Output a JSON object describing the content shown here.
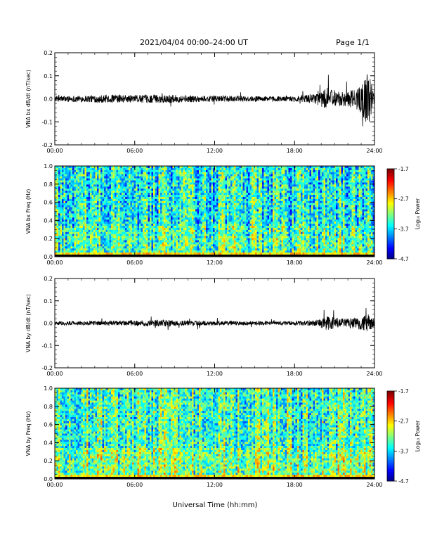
{
  "header": {
    "title": "2021/04/04  00:00–24:00 UT",
    "page": "Page 1/1"
  },
  "x_axis_label": "Universal Time (hh:mm)",
  "x_ticks": [
    "00:00",
    "06:00",
    "12:00",
    "18:00",
    "24:00"
  ],
  "colorbar": {
    "label": "Log₁₀ Power",
    "ticks": [
      "-1.7",
      "-2.7",
      "-3.7",
      "-4.7"
    ],
    "range": [
      -4.7,
      -1.7
    ]
  },
  "chart_data": [
    {
      "type": "line",
      "ylabel": "VNA bx dB/dt (nT/sec)",
      "xlim": [
        0,
        24
      ],
      "ylim": [
        -0.2,
        0.2
      ],
      "y_ticks": [
        "0.2",
        "0.1",
        "0.0",
        "-0.1",
        "-0.2"
      ],
      "series": [
        {
          "envelope_hours": [
            0,
            2,
            4,
            6,
            8,
            10,
            12,
            14,
            16,
            18,
            19.5,
            20.5,
            21.5,
            22.5,
            23,
            23.5,
            24
          ],
          "envelope_amplitude": [
            0.012,
            0.014,
            0.018,
            0.016,
            0.018,
            0.015,
            0.013,
            0.012,
            0.011,
            0.012,
            0.02,
            0.05,
            0.03,
            0.04,
            0.06,
            0.12,
            0.03
          ]
        }
      ]
    },
    {
      "type": "heatmap",
      "ylabel": "VNA bx Freq (Hz)",
      "xlim": [
        0,
        24
      ],
      "ylim": [
        0.0,
        1.0
      ],
      "y_ticks": [
        "1.0",
        "0.8",
        "0.6",
        "0.4",
        "0.2",
        "0.0"
      ]
    },
    {
      "type": "line",
      "ylabel": "VNA by dB/dt (nT/sec)",
      "xlim": [
        0,
        24
      ],
      "ylim": [
        -0.2,
        0.2
      ],
      "y_ticks": [
        "0.2",
        "0.1",
        "0.0",
        "-0.1",
        "-0.2"
      ],
      "series": [
        {
          "envelope_hours": [
            0,
            2,
            4,
            6,
            8,
            10,
            12,
            14,
            16,
            18,
            19.5,
            20.5,
            21.5,
            22.5,
            23,
            23.5,
            24
          ],
          "envelope_amplitude": [
            0.008,
            0.009,
            0.01,
            0.012,
            0.016,
            0.012,
            0.01,
            0.009,
            0.008,
            0.009,
            0.012,
            0.035,
            0.02,
            0.025,
            0.03,
            0.04,
            0.02
          ]
        }
      ]
    },
    {
      "type": "heatmap",
      "ylabel": "VNA by Freq (Hz)",
      "xlim": [
        0,
        24
      ],
      "ylim": [
        0.0,
        1.0
      ],
      "y_ticks": [
        "1.0",
        "0.8",
        "0.6",
        "0.4",
        "0.2",
        "0.0"
      ]
    }
  ]
}
